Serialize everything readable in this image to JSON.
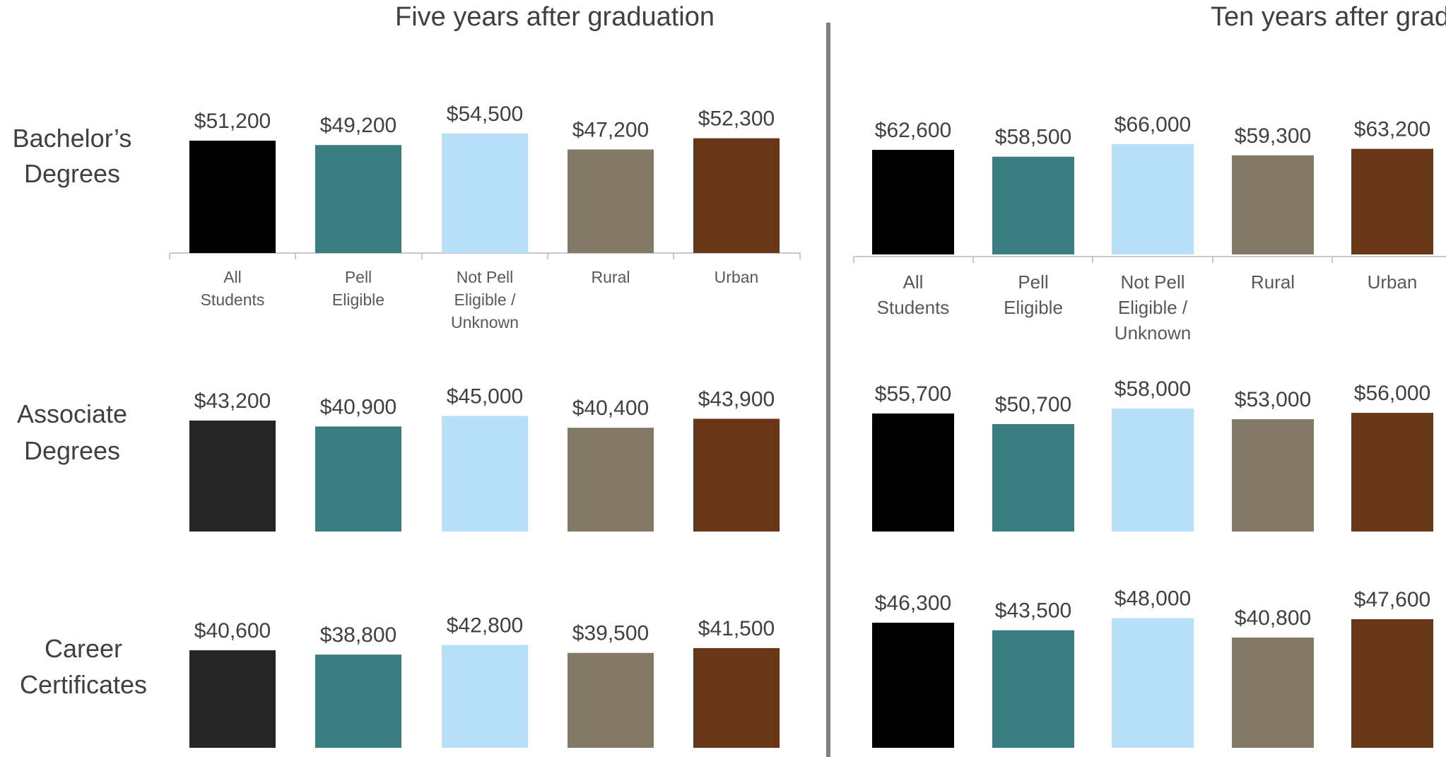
{
  "colors": {
    "all_students": "#000000",
    "all_students_alt": "#262626",
    "pell_eligible": "#3a7d80",
    "not_pell": "#b7dff7",
    "rural": "#827966",
    "urban": "#673717",
    "divider": "#808080",
    "axis": "#c8c8c8"
  },
  "chart_data": [
    {
      "type": "bar",
      "title": "Five years after graduation",
      "categories": [
        [
          "All",
          "Students"
        ],
        [
          "Pell",
          "Eligible"
        ],
        [
          "Not Pell",
          "Eligible /",
          "Unknown"
        ],
        [
          "Rural"
        ],
        [
          "Urban"
        ]
      ],
      "series": [
        {
          "name": "Bachelor’s Degrees",
          "label_lines": [
            "Bachelor’s",
            "Degrees"
          ],
          "values": [
            51200,
            49200,
            54500,
            47200,
            52300
          ],
          "labels": [
            "$51,200",
            "$49,200",
            "$54,500",
            "$47,200",
            "$52,300"
          ]
        },
        {
          "name": "Associate Degrees",
          "label_lines": [
            "Associate",
            "Degrees"
          ],
          "values": [
            43200,
            40900,
            45000,
            40400,
            43900
          ],
          "labels": [
            "$43,200",
            "$40,900",
            "$45,000",
            "$40,400",
            "$43,900"
          ]
        },
        {
          "name": "Career Certificates",
          "label_lines": [
            "Career",
            "Certificates"
          ],
          "values": [
            40600,
            38800,
            42800,
            39500,
            41500
          ],
          "labels": [
            "$40,600",
            "$38,800",
            "$42,800",
            "$39,500",
            "$41,500"
          ]
        }
      ]
    },
    {
      "type": "bar",
      "title": "Ten years after grad",
      "categories": [
        [
          "All",
          "Students"
        ],
        [
          "Pell",
          "Eligible"
        ],
        [
          "Not Pell",
          "Eligible /",
          "Unknown"
        ],
        [
          "Rural"
        ],
        [
          "Urban"
        ]
      ],
      "series": [
        {
          "name": "Bachelor’s Degrees",
          "values": [
            62600,
            58500,
            66000,
            59300,
            63200
          ],
          "labels": [
            "$62,600",
            "$58,500",
            "$66,000",
            "$59,300",
            "$63,200"
          ]
        },
        {
          "name": "Associate Degrees",
          "values": [
            55700,
            50700,
            58000,
            53000,
            56000
          ],
          "labels": [
            "$55,700",
            "$50,700",
            "$58,000",
            "$53,000",
            "$56,000"
          ]
        },
        {
          "name": "Career Certificates",
          "values": [
            46300,
            43500,
            48000,
            40800,
            47600
          ],
          "labels": [
            "$46,300",
            "$43,500",
            "$48,000",
            "$40,800",
            "$47,600"
          ]
        }
      ]
    }
  ]
}
